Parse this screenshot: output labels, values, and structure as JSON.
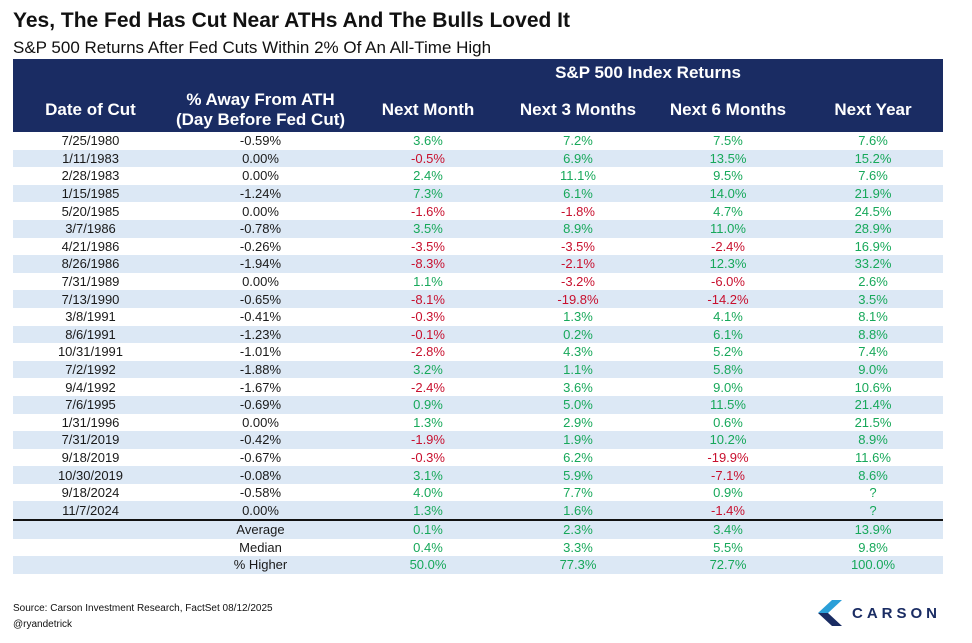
{
  "title": "Yes, The Fed Has Cut Near ATHs And The Bulls Loved It",
  "subtitle": "S&P 500 Returns After Fed Cuts Within 2% Of An All-Time High",
  "colors": {
    "header_bg": "#1a2c63",
    "band": "#dce8f5",
    "positive": "#17a85a",
    "negative": "#c8102e"
  },
  "chart_data": {
    "type": "table",
    "group_header": "S&P 500 Index Returns",
    "columns": [
      "Date of Cut",
      "% Away From ATH (Day Before Fed Cut)",
      "Next Month",
      "Next 3 Months",
      "Next 6 Months",
      "Next Year"
    ],
    "column_header_lines": [
      [
        "Date of Cut"
      ],
      [
        "% Away From ATH",
        "(Day Before Fed Cut)"
      ],
      [
        "Next Month"
      ],
      [
        "Next 3 Months"
      ],
      [
        "Next 6 Months"
      ],
      [
        "Next Year"
      ]
    ],
    "rows": [
      [
        "7/25/1980",
        "-0.59%",
        "3.6%",
        "7.2%",
        "7.5%",
        "7.6%"
      ],
      [
        "1/11/1983",
        "0.00%",
        "-0.5%",
        "6.9%",
        "13.5%",
        "15.2%"
      ],
      [
        "2/28/1983",
        "0.00%",
        "2.4%",
        "11.1%",
        "9.5%",
        "7.6%"
      ],
      [
        "1/15/1985",
        "-1.24%",
        "7.3%",
        "6.1%",
        "14.0%",
        "21.9%"
      ],
      [
        "5/20/1985",
        "0.00%",
        "-1.6%",
        "-1.8%",
        "4.7%",
        "24.5%"
      ],
      [
        "3/7/1986",
        "-0.78%",
        "3.5%",
        "8.9%",
        "11.0%",
        "28.9%"
      ],
      [
        "4/21/1986",
        "-0.26%",
        "-3.5%",
        "-3.5%",
        "-2.4%",
        "16.9%"
      ],
      [
        "8/26/1986",
        "-1.94%",
        "-8.3%",
        "-2.1%",
        "12.3%",
        "33.2%"
      ],
      [
        "7/31/1989",
        "0.00%",
        "1.1%",
        "-3.2%",
        "-6.0%",
        "2.6%"
      ],
      [
        "7/13/1990",
        "-0.65%",
        "-8.1%",
        "-19.8%",
        "-14.2%",
        "3.5%"
      ],
      [
        "3/8/1991",
        "-0.41%",
        "-0.3%",
        "1.3%",
        "4.1%",
        "8.1%"
      ],
      [
        "8/6/1991",
        "-1.23%",
        "-0.1%",
        "0.2%",
        "6.1%",
        "8.8%"
      ],
      [
        "10/31/1991",
        "-1.01%",
        "-2.8%",
        "4.3%",
        "5.2%",
        "7.4%"
      ],
      [
        "7/2/1992",
        "-1.88%",
        "3.2%",
        "1.1%",
        "5.8%",
        "9.0%"
      ],
      [
        "9/4/1992",
        "-1.67%",
        "-2.4%",
        "3.6%",
        "9.0%",
        "10.6%"
      ],
      [
        "7/6/1995",
        "-0.69%",
        "0.9%",
        "5.0%",
        "11.5%",
        "21.4%"
      ],
      [
        "1/31/1996",
        "0.00%",
        "1.3%",
        "2.9%",
        "0.6%",
        "21.5%"
      ],
      [
        "7/31/2019",
        "-0.42%",
        "-1.9%",
        "1.9%",
        "10.2%",
        "8.9%"
      ],
      [
        "9/18/2019",
        "-0.67%",
        "-0.3%",
        "6.2%",
        "-19.9%",
        "11.6%"
      ],
      [
        "10/30/2019",
        "-0.08%",
        "3.1%",
        "5.9%",
        "-7.1%",
        "8.6%"
      ],
      [
        "9/18/2024",
        "-0.58%",
        "4.0%",
        "7.7%",
        "0.9%",
        "?"
      ],
      [
        "11/7/2024",
        "0.00%",
        "1.3%",
        "1.6%",
        "-1.4%",
        "?"
      ]
    ],
    "summary": [
      [
        "Average",
        "0.1%",
        "2.3%",
        "3.4%",
        "13.9%"
      ],
      [
        "Median",
        "0.4%",
        "3.3%",
        "5.5%",
        "9.8%"
      ],
      [
        "% Higher",
        "50.0%",
        "77.3%",
        "72.7%",
        "100.0%"
      ]
    ]
  },
  "footer": {
    "source": "Source: Carson Investment Research, FactSet 08/12/2025",
    "handle": "@ryandetrick",
    "logo_text": "CARSON",
    "logo_icon": "carson-chevron-icon"
  }
}
